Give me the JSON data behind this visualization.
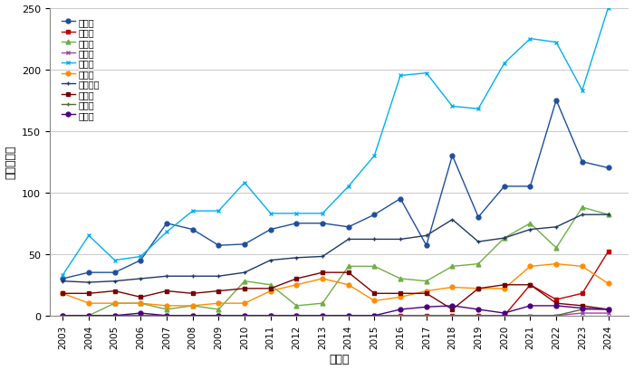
{
  "years": [
    2003,
    2004,
    2005,
    2006,
    2007,
    2008,
    2009,
    2010,
    2011,
    2012,
    2013,
    2014,
    2015,
    2016,
    2017,
    2018,
    2019,
    2020,
    2021,
    2022,
    2023,
    2024
  ],
  "series": [
    {
      "name": "福岡県",
      "values": [
        30,
        35,
        35,
        45,
        75,
        70,
        57,
        58,
        70,
        75,
        75,
        72,
        82,
        95,
        57,
        130,
        80,
        105,
        105,
        175,
        125,
        120
      ],
      "color": "#1F4E9B",
      "marker": "o"
    },
    {
      "name": "大分県",
      "values": [
        0,
        0,
        0,
        0,
        0,
        0,
        0,
        0,
        0,
        0,
        0,
        0,
        0,
        0,
        0,
        0,
        0,
        0,
        25,
        13,
        18,
        52
      ],
      "color": "#C00000",
      "marker": "s"
    },
    {
      "name": "佐賀県",
      "values": [
        0,
        0,
        10,
        10,
        5,
        8,
        5,
        28,
        25,
        8,
        10,
        40,
        40,
        30,
        28,
        40,
        42,
        63,
        75,
        55,
        88,
        82
      ],
      "color": "#70AD47",
      "marker": "^"
    },
    {
      "name": "長崎県",
      "values": [
        0,
        0,
        0,
        0,
        0,
        0,
        0,
        0,
        0,
        0,
        0,
        0,
        0,
        0,
        0,
        0,
        0,
        0,
        0,
        0,
        2,
        2
      ],
      "color": "#9E48A2",
      "marker": "x"
    },
    {
      "name": "熊本県",
      "values": [
        33,
        65,
        45,
        48,
        68,
        85,
        85,
        108,
        83,
        83,
        83,
        105,
        130,
        195,
        197,
        170,
        168,
        205,
        225,
        222,
        183,
        250
      ],
      "color": "#00B0F0",
      "marker": "x"
    },
    {
      "name": "宮崎県",
      "values": [
        18,
        10,
        10,
        10,
        8,
        8,
        10,
        10,
        20,
        25,
        30,
        25,
        12,
        15,
        20,
        23,
        22,
        22,
        40,
        42,
        40,
        26
      ],
      "color": "#FF8C00",
      "marker": "o"
    },
    {
      "name": "鹿児島県",
      "values": [
        28,
        27,
        28,
        30,
        32,
        32,
        32,
        35,
        45,
        47,
        48,
        62,
        62,
        62,
        65,
        78,
        60,
        63,
        70,
        72,
        82,
        82
      ],
      "color": "#1F3864",
      "marker": "+"
    },
    {
      "name": "沖縄県",
      "values": [
        18,
        18,
        20,
        15,
        20,
        18,
        20,
        22,
        22,
        30,
        35,
        35,
        18,
        18,
        18,
        5,
        22,
        25,
        25,
        10,
        8,
        5
      ],
      "color": "#7B0000",
      "marker": "s"
    },
    {
      "name": "山口県",
      "values": [
        0,
        0,
        0,
        0,
        0,
        0,
        0,
        0,
        0,
        0,
        0,
        0,
        0,
        0,
        0,
        0,
        0,
        0,
        0,
        0,
        5,
        5
      ],
      "color": "#556B2F",
      "marker": "+"
    },
    {
      "name": "その他",
      "values": [
        0,
        0,
        0,
        2,
        0,
        0,
        0,
        0,
        0,
        0,
        0,
        0,
        0,
        5,
        7,
        8,
        5,
        2,
        8,
        8,
        6,
        5
      ],
      "color": "#4B0082",
      "marker": "o"
    }
  ],
  "xlabel": "調査年",
  "ylabel": "観察個体数",
  "ylim": [
    0,
    250
  ],
  "yticks": [
    0,
    50,
    100,
    150,
    200,
    250
  ],
  "background_color": "#ffffff"
}
